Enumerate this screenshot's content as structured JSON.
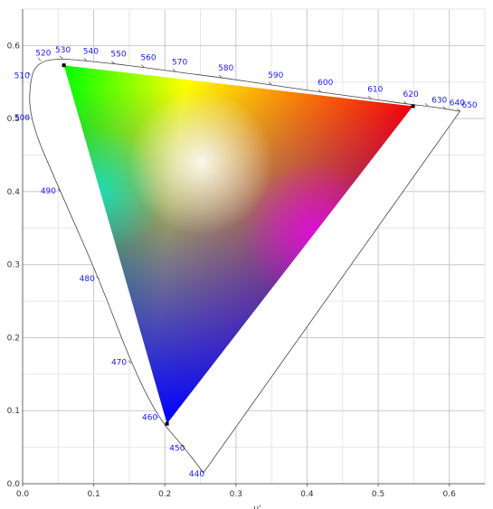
{
  "chart_data": {
    "type": "scatter",
    "xlabel": "u'",
    "ylabel": "",
    "xlim": [
      0.0,
      0.65
    ],
    "ylim": [
      0.0,
      0.65
    ],
    "x_ticks": [
      "0.0",
      "0.1",
      "0.2",
      "0.3",
      "0.4",
      "0.5",
      "0.6"
    ],
    "y_ticks": [
      "0.0",
      "0.1",
      "0.2",
      "0.3",
      "0.4",
      "0.5",
      "0.6"
    ],
    "grid": true,
    "spectral_locus": [
      {
        "nm": "440",
        "u": 0.2543,
        "v": 0.0149
      },
      {
        "nm": "450",
        "u": 0.2268,
        "v": 0.05
      },
      {
        "nm": "460",
        "u": 0.1908,
        "v": 0.09
      },
      {
        "nm": "470",
        "u": 0.1526,
        "v": 0.165
      },
      {
        "nm": "480",
        "u": 0.1077,
        "v": 0.28
      },
      {
        "nm": "490",
        "u": 0.0532,
        "v": 0.4
      },
      {
        "nm": "500",
        "u": 0.0088,
        "v": 0.5
      },
      {
        "nm": "510",
        "u": 0.011,
        "v": 0.56
      },
      {
        "nm": "520",
        "u": 0.0258,
        "v": 0.579
      },
      {
        "nm": "530",
        "u": 0.056,
        "v": 0.582
      },
      {
        "nm": "540",
        "u": 0.09,
        "v": 0.579
      },
      {
        "nm": "550",
        "u": 0.129,
        "v": 0.575
      },
      {
        "nm": "560",
        "u": 0.171,
        "v": 0.57
      },
      {
        "nm": "570",
        "u": 0.215,
        "v": 0.564
      },
      {
        "nm": "580",
        "u": 0.28,
        "v": 0.556
      },
      {
        "nm": "590",
        "u": 0.35,
        "v": 0.546
      },
      {
        "nm": "600",
        "u": 0.42,
        "v": 0.536
      },
      {
        "nm": "610",
        "u": 0.49,
        "v": 0.527
      },
      {
        "nm": "620",
        "u": 0.54,
        "v": 0.52
      },
      {
        "nm": "630",
        "u": 0.57,
        "v": 0.517
      },
      {
        "nm": "640",
        "u": 0.595,
        "v": 0.513
      },
      {
        "nm": "650",
        "u": 0.615,
        "v": 0.51
      }
    ],
    "gamut_triangle": [
      {
        "name": "green",
        "u": 0.058,
        "v": 0.573,
        "color": "#00ff00"
      },
      {
        "name": "red",
        "u": 0.549,
        "v": 0.517,
        "color": "#ff0000"
      },
      {
        "name": "blue",
        "u": 0.203,
        "v": 0.082,
        "color": "#0000ff"
      }
    ],
    "locus_color": "#444444",
    "label_color": "#1a1aff"
  }
}
